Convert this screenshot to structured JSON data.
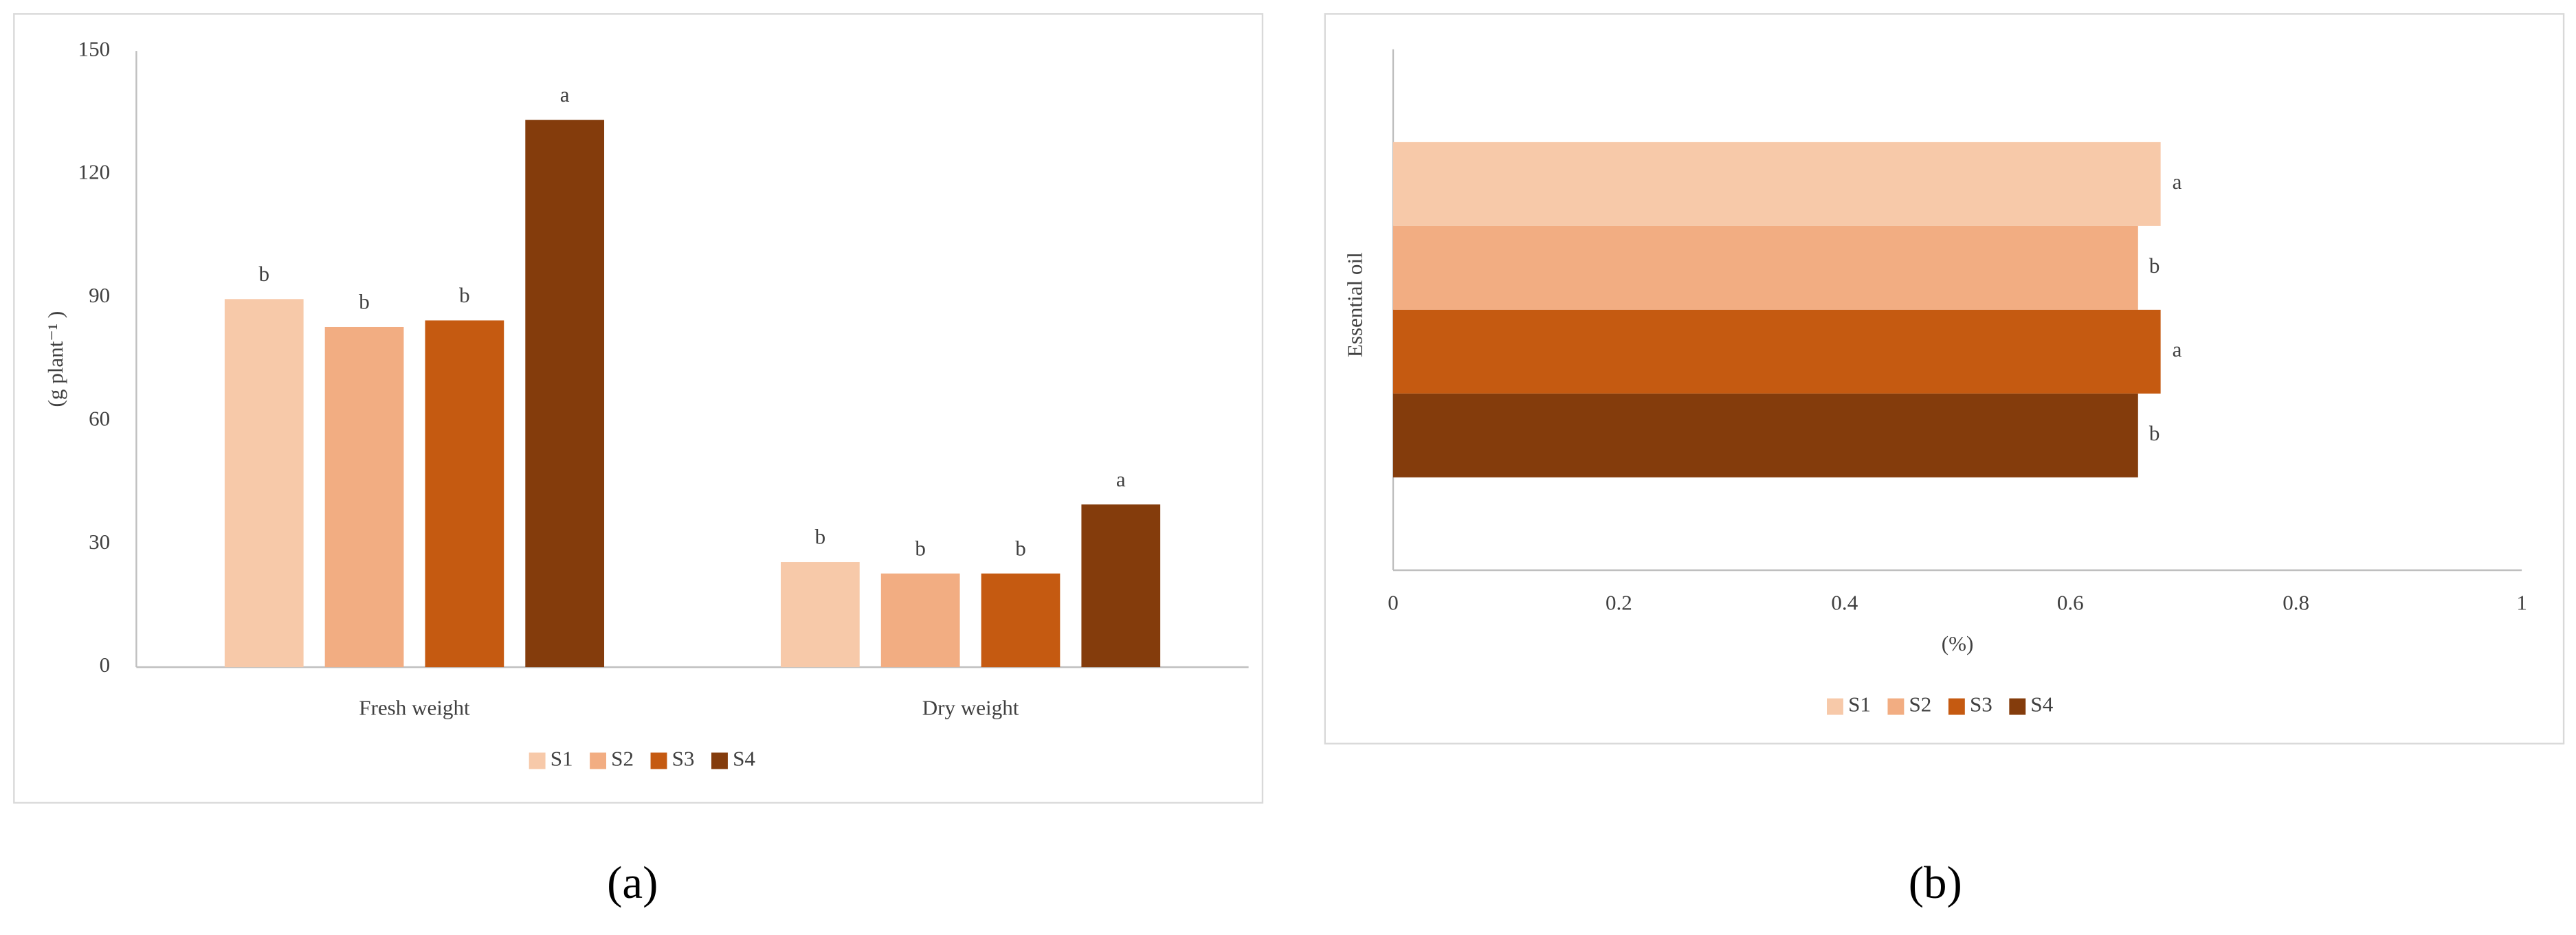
{
  "chart_data": [
    {
      "type": "bar",
      "orientation": "vertical",
      "caption": "(a)",
      "ylabel": "(g plant⁻¹ )",
      "categories": [
        "Fresh weight",
        "Dry weight"
      ],
      "series": [
        {
          "name": "S1",
          "color": "#f7c9a9",
          "values": [
            89.6,
            25.6
          ],
          "letters": [
            "b",
            "b"
          ]
        },
        {
          "name": "S2",
          "color": "#f2ad82",
          "values": [
            82.8,
            22.8
          ],
          "letters": [
            "b",
            "b"
          ]
        },
        {
          "name": "S3",
          "color": "#c55a11",
          "values": [
            84.4,
            22.8
          ],
          "letters": [
            "b",
            "b"
          ]
        },
        {
          "name": "S4",
          "color": "#843c0c",
          "values": [
            133.2,
            39.6
          ],
          "letters": [
            "a",
            "a"
          ]
        }
      ],
      "ylim": [
        0,
        150
      ],
      "yticks": [
        0,
        30,
        60,
        90,
        120,
        150
      ],
      "grid": false,
      "legend": "bottom"
    },
    {
      "type": "bar",
      "orientation": "horizontal",
      "caption": "(b)",
      "xlabel": "(%)",
      "categories": [
        "Essential oil"
      ],
      "series": [
        {
          "name": "S1",
          "color": "#f7c9a9",
          "values": [
            0.68
          ],
          "letters": [
            "a"
          ]
        },
        {
          "name": "S2",
          "color": "#f2ad82",
          "values": [
            0.66
          ],
          "letters": [
            "b"
          ]
        },
        {
          "name": "S3",
          "color": "#c55a11",
          "values": [
            0.68
          ],
          "letters": [
            "a"
          ]
        },
        {
          "name": "S4",
          "color": "#843c0c",
          "values": [
            0.66
          ],
          "letters": [
            "b"
          ]
        }
      ],
      "xlim": [
        0,
        1
      ],
      "xticks": [
        0,
        0.2,
        0.4,
        0.6,
        0.8,
        1
      ],
      "grid": false,
      "legend": "bottom"
    }
  ]
}
